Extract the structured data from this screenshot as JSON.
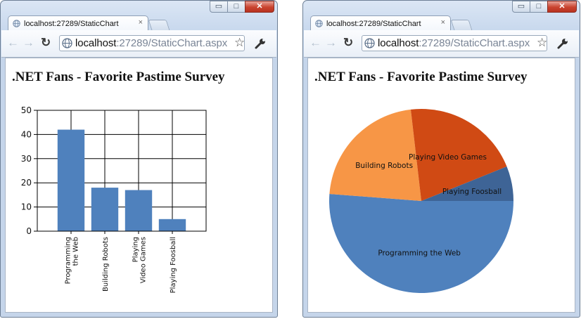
{
  "windows": [
    {
      "tab": {
        "title": "localhost:27289/StaticChart",
        "close_glyph": "×"
      },
      "omnibox": {
        "host": "localhost",
        "path": ":27289/StaticChart.aspx"
      },
      "page_title": ".NET Fans - Favorite Pastime Survey"
    },
    {
      "tab": {
        "title": "localhost:27289/StaticChart",
        "close_glyph": "×"
      },
      "omnibox": {
        "host": "localhost",
        "path": ":27289/StaticChart.aspx"
      },
      "page_title": ".NET Fans - Favorite Pastime Survey"
    }
  ],
  "window_controls": {
    "minimize": "▭",
    "maximize": "□",
    "close": "✕"
  },
  "icons": {
    "back": "back-arrow-icon",
    "forward": "forward-arrow-icon",
    "reload": "reload-icon",
    "favicon": "globe-icon",
    "bookmark": "star-icon",
    "menu": "wrench-icon"
  },
  "colors": {
    "bar": "#4f81bd",
    "pie": [
      "#4f81bd",
      "#f79646",
      "#d04a14",
      "#3e6496"
    ]
  },
  "chart_data": [
    {
      "type": "bar",
      "categories": [
        "Programming the Web",
        "Building Robots",
        "Playing Video Games",
        "Playing Foosball"
      ],
      "category_tick_lines": [
        [
          "Programming",
          "the Web"
        ],
        [
          "Building Robots"
        ],
        [
          "Playing",
          "Video Games"
        ],
        [
          "Playing Foosball"
        ]
      ],
      "values": [
        42,
        18,
        17,
        5
      ],
      "ylim": [
        0,
        50
      ],
      "yticks": [
        0,
        10,
        20,
        30,
        40,
        50
      ],
      "title": "",
      "xlabel": "",
      "ylabel": "",
      "grid": true,
      "legend": "none"
    },
    {
      "type": "pie",
      "labels": [
        "Programming the Web",
        "Building Robots",
        "Playing Video Games",
        "Playing Foosball"
      ],
      "values": [
        42,
        18,
        17,
        5
      ],
      "title": "",
      "legend": "none"
    }
  ]
}
